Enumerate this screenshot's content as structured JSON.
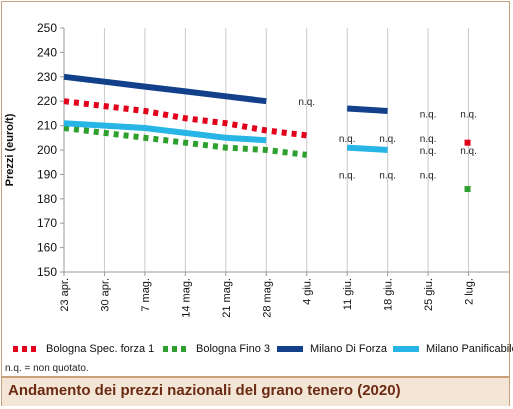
{
  "chart_data": {
    "type": "line",
    "title": "Andamento dei prezzi nazionali del grano tenero (2020)",
    "ylabel": "Prezzi (euro/t)",
    "xlabel": "",
    "ylim": [
      150,
      250
    ],
    "yticks": [
      150,
      160,
      170,
      180,
      190,
      200,
      210,
      220,
      230,
      240,
      250
    ],
    "categories": [
      "23 apr.",
      "30 apr.",
      "7 mag.",
      "14 mag.",
      "21 mag.",
      "28 mag.",
      "4 giu.",
      "11 giu.",
      "18 giu.",
      "25 giu.",
      "2 lug."
    ],
    "grid": "vertical",
    "legend_position": "bottom",
    "series": [
      {
        "name": "Bologna Spec. forza 1",
        "color": "#e3001b",
        "style": "dotted",
        "values": [
          220,
          218,
          216,
          213,
          211,
          208,
          206,
          null,
          null,
          null,
          203
        ]
      },
      {
        "name": "Bologna Fino 3",
        "color": "#2ea02e",
        "style": "dotted",
        "values": [
          209,
          207,
          205,
          203,
          201,
          200,
          198,
          null,
          null,
          null,
          184
        ]
      },
      {
        "name": "Milano Di Forza",
        "color": "#12408a",
        "style": "solid",
        "values": [
          230,
          228,
          226,
          224,
          222,
          220,
          null,
          217,
          216,
          null,
          null
        ]
      },
      {
        "name": "Milano Panificabile",
        "color": "#27b5e6",
        "style": "solid",
        "values": [
          211,
          210,
          209,
          207,
          205,
          204,
          null,
          201,
          200,
          null,
          null
        ]
      }
    ],
    "annotations": [
      {
        "text": "n.q.",
        "x": "4 giu.",
        "y": 220
      },
      {
        "text": "n.q.",
        "x": "11 giu.",
        "y": 205
      },
      {
        "text": "n.q.",
        "x": "11 giu.",
        "y": 190
      },
      {
        "text": "n.q.",
        "x": "18 giu.",
        "y": 205
      },
      {
        "text": "n.q.",
        "x": "18 giu.",
        "y": 190
      },
      {
        "text": "n.q.",
        "x": "25 giu.",
        "y": 215
      },
      {
        "text": "n.q.",
        "x": "25 giu.",
        "y": 205
      },
      {
        "text": "n.q.",
        "x": "25 giu.",
        "y": 200
      },
      {
        "text": "n.q.",
        "x": "25 giu.",
        "y": 190
      },
      {
        "text": "n.q.",
        "x": "2 lug.",
        "y": 215
      },
      {
        "text": "n.q.",
        "x": "2 lug.",
        "y": 200
      }
    ]
  },
  "footnote": "n.q. = non quotato."
}
